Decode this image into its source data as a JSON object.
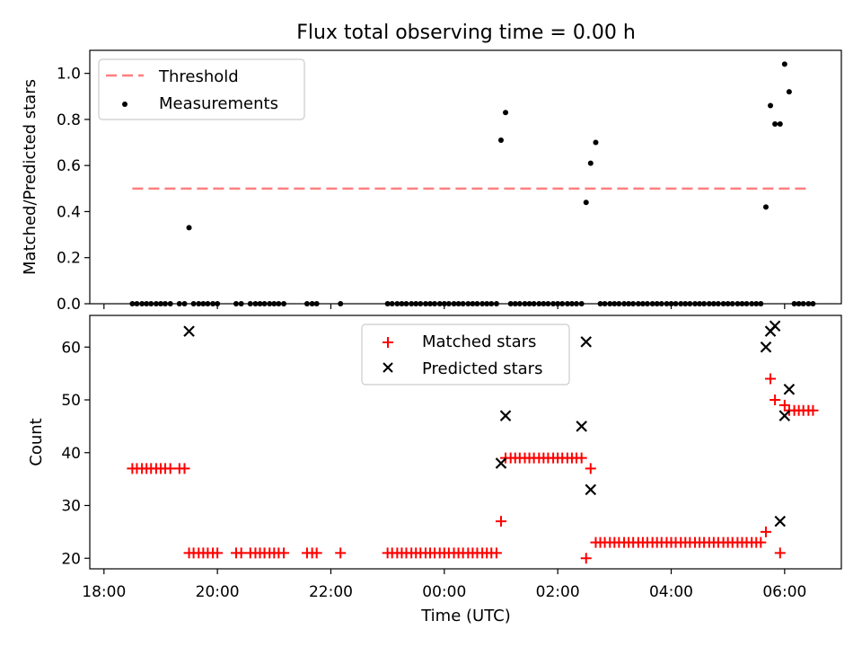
{
  "figure": {
    "title": "Flux total observing time = 0.00 h",
    "xlabel": "Time (UTC)"
  },
  "chart_data": [
    {
      "type": "scatter",
      "title": "Flux total observing time = 0.00 h",
      "ylabel": "Matched/Predicted stars",
      "xlabel": "",
      "x_unit": "hours since 18:00 UTC",
      "xlim": [
        -0.25,
        13.0
      ],
      "ylim": [
        0.0,
        1.1
      ],
      "yticks": [
        0.0,
        0.2,
        0.4,
        0.6,
        0.8,
        1.0
      ],
      "ytick_labels": [
        "0.0",
        "0.2",
        "0.4",
        "0.6",
        "0.8",
        "1.0"
      ],
      "legend": {
        "placement": "upper left"
      },
      "threshold": {
        "name": "Threshold",
        "value": 0.5,
        "x_range": [
          0.5,
          12.45
        ],
        "color": "#ff7f7f"
      },
      "series": [
        {
          "name": "Measurements",
          "marker": "dot",
          "color": "#000000",
          "x": [
            0.5,
            0.58,
            0.67,
            0.75,
            0.83,
            0.92,
            1.0,
            1.08,
            1.17,
            1.33,
            1.42,
            1.5,
            1.58,
            1.67,
            1.75,
            1.83,
            1.92,
            2.0,
            2.33,
            2.42,
            2.58,
            2.67,
            2.75,
            2.83,
            2.92,
            3.0,
            3.08,
            3.17,
            3.58,
            3.67,
            3.75,
            4.17,
            5.0,
            5.08,
            5.17,
            5.25,
            5.33,
            5.42,
            5.5,
            5.58,
            5.67,
            5.75,
            5.83,
            5.92,
            6.0,
            6.08,
            6.17,
            6.25,
            6.33,
            6.42,
            6.5,
            6.58,
            6.67,
            6.75,
            6.83,
            6.92,
            7.0,
            7.08,
            7.17,
            7.25,
            7.33,
            7.42,
            7.5,
            7.58,
            7.67,
            7.75,
            7.83,
            7.92,
            8.0,
            8.08,
            8.17,
            8.25,
            8.33,
            8.42,
            8.5,
            8.58,
            8.67,
            8.75,
            8.83,
            8.92,
            9.0,
            9.08,
            9.17,
            9.25,
            9.33,
            9.42,
            9.5,
            9.58,
            9.67,
            9.75,
            9.83,
            9.92,
            10.0,
            10.08,
            10.17,
            10.25,
            10.33,
            10.42,
            10.5,
            10.58,
            10.67,
            10.75,
            10.83,
            10.92,
            11.0,
            11.08,
            11.17,
            11.25,
            11.33,
            11.42,
            11.5,
            11.58,
            11.67,
            11.75,
            11.83,
            11.92,
            12.0,
            12.08,
            12.17,
            12.25,
            12.33,
            12.42,
            12.5
          ],
          "y": [
            0,
            0,
            0,
            0,
            0,
            0,
            0,
            0,
            0,
            0,
            0,
            0.33,
            0,
            0,
            0,
            0,
            0,
            0,
            0,
            0,
            0,
            0,
            0,
            0,
            0,
            0,
            0,
            0,
            0,
            0,
            0,
            0,
            0,
            0,
            0,
            0,
            0,
            0,
            0,
            0,
            0,
            0,
            0,
            0,
            0,
            0,
            0,
            0,
            0,
            0,
            0,
            0,
            0,
            0,
            0,
            0,
            0.71,
            0.83,
            0,
            0,
            0,
            0,
            0,
            0,
            0,
            0,
            0,
            0,
            0,
            0,
            0,
            0,
            0,
            0,
            0.44,
            0.61,
            0.7,
            0,
            0,
            0,
            0,
            0,
            0,
            0,
            0,
            0,
            0,
            0,
            0,
            0,
            0,
            0,
            0,
            0,
            0,
            0,
            0,
            0,
            0,
            0,
            0,
            0,
            0,
            0,
            0,
            0,
            0,
            0,
            0,
            0,
            0,
            0,
            0.42,
            0.86,
            0.78,
            0.78,
            1.04,
            0.92,
            0,
            0,
            0,
            0,
            0
          ]
        }
      ]
    },
    {
      "type": "scatter",
      "ylabel": "Count",
      "xlabel": "Time (UTC)",
      "x_unit": "hours since 18:00 UTC",
      "xlim": [
        -0.25,
        13.0
      ],
      "ylim": [
        18,
        66
      ],
      "xticks": [
        0,
        2,
        4,
        6,
        8,
        10,
        12
      ],
      "xtick_labels": [
        "18:00",
        "20:00",
        "22:00",
        "00:00",
        "02:00",
        "04:00",
        "06:00"
      ],
      "yticks": [
        20,
        30,
        40,
        50,
        60
      ],
      "ytick_labels": [
        "20",
        "30",
        "40",
        "50",
        "60"
      ],
      "legend": {
        "placement": "upper center"
      },
      "series": [
        {
          "name": "Matched stars",
          "marker": "plus",
          "color": "#ff0000",
          "x": [
            0.5,
            0.58,
            0.67,
            0.75,
            0.83,
            0.92,
            1.0,
            1.08,
            1.17,
            1.33,
            1.42,
            1.5,
            1.58,
            1.67,
            1.75,
            1.83,
            1.92,
            2.0,
            2.33,
            2.42,
            2.58,
            2.67,
            2.75,
            2.83,
            2.92,
            3.0,
            3.08,
            3.17,
            3.58,
            3.67,
            3.75,
            4.17,
            5.0,
            5.08,
            5.17,
            5.25,
            5.33,
            5.42,
            5.5,
            5.58,
            5.67,
            5.75,
            5.83,
            5.92,
            6.0,
            6.08,
            6.17,
            6.25,
            6.33,
            6.42,
            6.5,
            6.58,
            6.67,
            6.75,
            6.83,
            6.92,
            7.0,
            7.08,
            7.17,
            7.25,
            7.33,
            7.42,
            7.5,
            7.58,
            7.67,
            7.75,
            7.83,
            7.92,
            8.0,
            8.08,
            8.17,
            8.25,
            8.33,
            8.42,
            8.5,
            8.58,
            8.67,
            8.75,
            8.83,
            8.92,
            9.0,
            9.08,
            9.17,
            9.25,
            9.33,
            9.42,
            9.5,
            9.58,
            9.67,
            9.75,
            9.83,
            9.92,
            10.0,
            10.08,
            10.17,
            10.25,
            10.33,
            10.42,
            10.5,
            10.58,
            10.67,
            10.75,
            10.83,
            10.92,
            11.0,
            11.08,
            11.17,
            11.25,
            11.33,
            11.42,
            11.5,
            11.58,
            11.67,
            11.75,
            11.83,
            11.92,
            12.0,
            12.08,
            12.17,
            12.25,
            12.33,
            12.42,
            12.5
          ],
          "y": [
            37,
            37,
            37,
            37,
            37,
            37,
            37,
            37,
            37,
            37,
            37,
            21,
            21,
            21,
            21,
            21,
            21,
            21,
            21,
            21,
            21,
            21,
            21,
            21,
            21,
            21,
            21,
            21,
            21,
            21,
            21,
            21,
            21,
            21,
            21,
            21,
            21,
            21,
            21,
            21,
            21,
            21,
            21,
            21,
            21,
            21,
            21,
            21,
            21,
            21,
            21,
            21,
            21,
            21,
            21,
            21,
            27,
            39,
            39,
            39,
            39,
            39,
            39,
            39,
            39,
            39,
            39,
            39,
            39,
            39,
            39,
            39,
            39,
            39,
            20,
            37,
            23,
            23,
            23,
            23,
            23,
            23,
            23,
            23,
            23,
            23,
            23,
            23,
            23,
            23,
            23,
            23,
            23,
            23,
            23,
            23,
            23,
            23,
            23,
            23,
            23,
            23,
            23,
            23,
            23,
            23,
            23,
            23,
            23,
            23,
            23,
            23,
            25,
            54,
            50,
            21,
            49,
            48,
            48,
            48,
            48,
            48,
            48
          ]
        },
        {
          "name": "Predicted stars",
          "marker": "x",
          "color": "#000000",
          "x": [
            1.5,
            7.0,
            7.08,
            8.42,
            8.5,
            8.58,
            11.67,
            11.75,
            11.83,
            11.92,
            12.0,
            12.08
          ],
          "y": [
            63,
            38,
            47,
            45,
            61,
            33,
            60,
            63,
            64,
            27,
            47,
            52
          ]
        }
      ]
    }
  ]
}
